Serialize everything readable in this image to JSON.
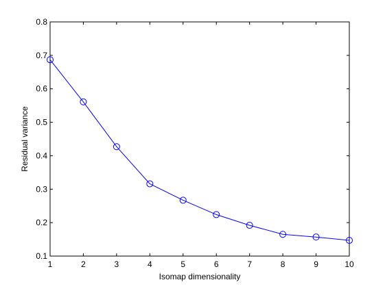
{
  "chart_data": {
    "type": "line",
    "title": "",
    "xlabel": "Isomap dimensionality",
    "ylabel": "Residual variance",
    "xlim": [
      1,
      10
    ],
    "ylim": [
      0.1,
      0.8
    ],
    "xticks": [
      1,
      2,
      3,
      4,
      5,
      6,
      7,
      8,
      9,
      10
    ],
    "xtick_labels": [
      "1",
      "2",
      "3",
      "4",
      "5",
      "6",
      "7",
      "8",
      "9",
      "10"
    ],
    "yticks": [
      0.1,
      0.2,
      0.3,
      0.4,
      0.5,
      0.6,
      0.7,
      0.8
    ],
    "ytick_labels": [
      "0.1",
      "0.2",
      "0.3",
      "0.4",
      "0.5",
      "0.6",
      "0.7",
      "0.8"
    ],
    "grid": false,
    "series": [
      {
        "color": "#0000ff",
        "marker": "circle",
        "x": [
          1,
          2,
          3,
          4,
          5,
          6,
          7,
          8,
          9,
          10
        ],
        "y": [
          0.687,
          0.561,
          0.427,
          0.316,
          0.267,
          0.224,
          0.192,
          0.165,
          0.157,
          0.147
        ]
      }
    ]
  }
}
